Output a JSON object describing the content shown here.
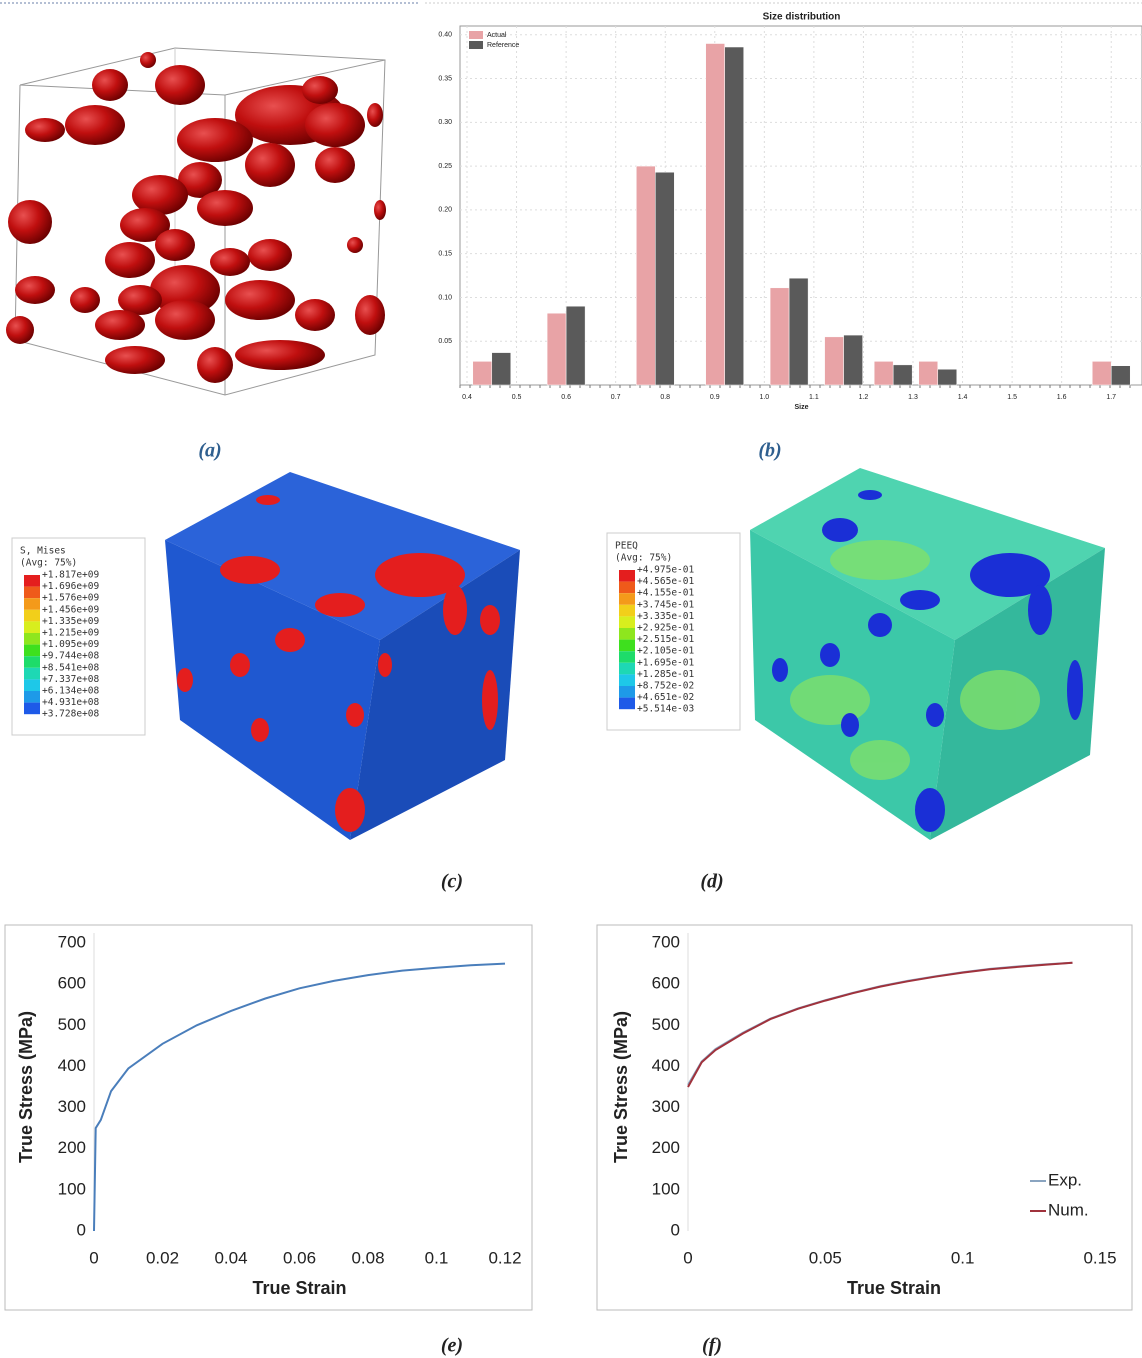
{
  "captions": [
    "(a)",
    "(b)",
    "(c)",
    "(d)",
    "(e)",
    "(f)"
  ],
  "legends": [
    {
      "title": "S, Mises",
      "subtitle": "(Avg: 75%)",
      "labels": [
        "+1.817e+09",
        "+1.696e+09",
        "+1.576e+09",
        "+1.456e+09",
        "+1.335e+09",
        "+1.215e+09",
        "+1.095e+09",
        "+9.744e+08",
        "+8.541e+08",
        "+7.337e+08",
        "+6.134e+08",
        "+4.931e+08",
        "+3.728e+08"
      ]
    },
    {
      "title": "PEEQ",
      "subtitle": "(Avg: 75%)",
      "labels": [
        "+4.975e-01",
        "+4.565e-01",
        "+4.155e-01",
        "+3.745e-01",
        "+3.335e-01",
        "+2.925e-01",
        "+2.515e-01",
        "+2.105e-01",
        "+1.695e-01",
        "+1.285e-01",
        "+8.752e-02",
        "+4.651e-02",
        "+5.514e-03"
      ]
    }
  ],
  "chart_data": [
    {
      "type": "bar",
      "title": "Size distribution",
      "xlabel": "Size",
      "x": [
        0.45,
        0.6,
        0.78,
        0.92,
        1.05,
        1.16,
        1.26,
        1.35,
        1.7
      ],
      "series": [
        {
          "name": "Actual",
          "color": "#e8a3a6",
          "values": [
            0.027,
            0.082,
            0.25,
            0.39,
            0.111,
            0.055,
            0.027,
            0.027,
            0.027
          ]
        },
        {
          "name": "Reference",
          "color": "#5a5a5a",
          "values": [
            0.037,
            0.09,
            0.243,
            0.386,
            0.122,
            0.057,
            0.023,
            0.018,
            0.022
          ]
        }
      ],
      "xlim": [
        0.4,
        1.75
      ],
      "xticks": [
        0.4,
        0.5,
        0.6,
        0.7,
        0.8,
        0.9,
        {
          "value": 1,
          "label": "1.0"
        },
        1.1,
        1.2,
        1.3,
        1.4,
        1.5,
        1.6,
        1.7
      ],
      "ylim": [
        0,
        0.41
      ],
      "yticks": [
        {
          "value": 0.4,
          "label": "0.40"
        },
        0.35,
        {
          "value": 0.3,
          "label": "0.30"
        },
        0.25,
        {
          "value": 0.2,
          "label": "0.20"
        },
        0.15,
        {
          "value": 0.1,
          "label": "0.10"
        },
        0.05
      ],
      "grid": true,
      "legend": "upper left"
    },
    {
      "type": "line",
      "xlabel": "True Strain",
      "ylabel": "True Stress (MPa)",
      "color": "#4a7ebb",
      "x": [
        0,
        0.0005,
        0.002,
        0.005,
        0.01,
        0.02,
        0.03,
        0.04,
        0.05,
        0.06,
        0.07,
        0.08,
        0.09,
        0.1,
        0.11,
        0.12
      ],
      "values": [
        0,
        250,
        270,
        340,
        395,
        455,
        500,
        535,
        565,
        590,
        608,
        622,
        633,
        640,
        646,
        650
      ],
      "xlim": [
        0,
        0.12
      ],
      "xticks": [
        0,
        0.02,
        0.04,
        0.06,
        0.08,
        0.1,
        0.12
      ],
      "ylim": [
        0,
        700
      ],
      "yticks": [
        0,
        100,
        200,
        300,
        400,
        500,
        600,
        700
      ],
      "grid": false
    },
    {
      "type": "line",
      "xlabel": "True Strain",
      "ylabel": "True Stress (MPa)",
      "x": [
        0,
        0.005,
        0.01,
        0.02,
        0.03,
        0.04,
        0.05,
        0.06,
        0.07,
        0.08,
        0.09,
        0.1,
        0.11,
        0.12,
        0.13,
        0.14
      ],
      "series": [
        {
          "name": "Exp.",
          "color": "#8aa4c0",
          "values": [
            355,
            412,
            442,
            482,
            516,
            541,
            561,
            579,
            595,
            608,
            619,
            629,
            637,
            643,
            648,
            652
          ]
        },
        {
          "name": "Num.",
          "color": "#a0323c",
          "values": [
            350,
            410,
            440,
            480,
            515,
            540,
            560,
            578,
            594,
            607,
            618,
            628,
            636,
            642,
            647,
            652
          ]
        }
      ],
      "xlim": [
        0,
        0.15
      ],
      "xticks": [
        0,
        0.05,
        0.1,
        0.15
      ],
      "ylim": [
        0,
        700
      ],
      "yticks": [
        0,
        100,
        200,
        300,
        400,
        500,
        600,
        700
      ],
      "grid": false,
      "legend": "lower right"
    }
  ]
}
